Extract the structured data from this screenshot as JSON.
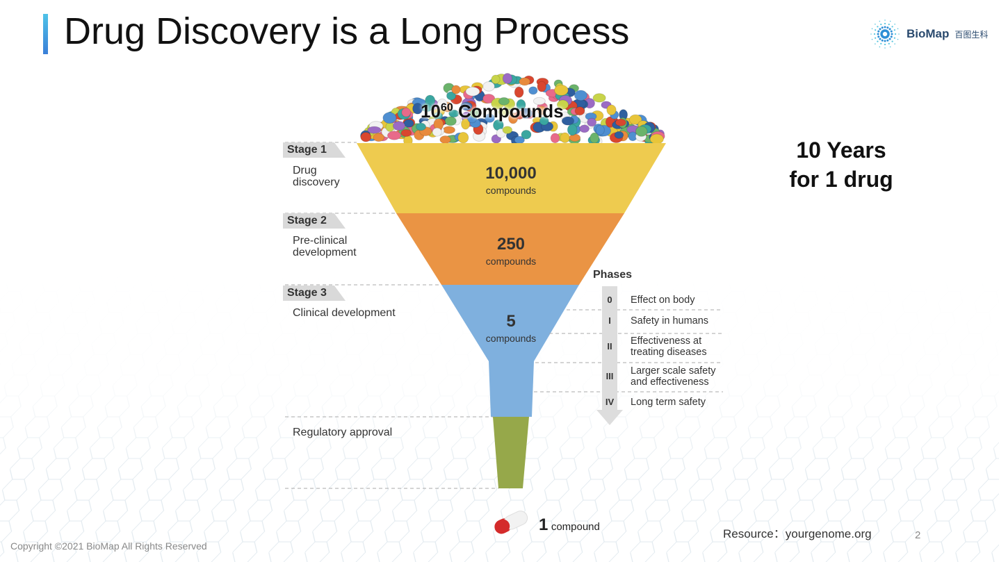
{
  "title": "Drug Discovery is a Long Process",
  "logo": {
    "name": "BioMap",
    "cn": "百图生科"
  },
  "top": {
    "base": "10",
    "exponent": "60",
    "label": "Compounds"
  },
  "stages": [
    {
      "tag": "Stage 1",
      "desc": "Drug\ndiscovery",
      "count": "10,000",
      "unit": "compounds",
      "color": "#eecb4f"
    },
    {
      "tag": "Stage 2",
      "desc": "Pre-clinical\ndevelopment",
      "count": "250",
      "unit": "compounds",
      "color": "#ea9444"
    },
    {
      "tag": "Stage 3",
      "desc": "Clinical development",
      "count": "5",
      "unit": "compounds",
      "color": "#7fb0de"
    }
  ],
  "regulatory": {
    "desc": "Regulatory approval",
    "color": "#96a84a"
  },
  "final": {
    "count": "1",
    "unit": "compound"
  },
  "phases": {
    "heading": "Phases",
    "items": [
      {
        "num": "0",
        "desc": "Effect on body"
      },
      {
        "num": "I",
        "desc": "Safety in humans"
      },
      {
        "num": "II",
        "desc": "Effectiveness at\ntreating diseases"
      },
      {
        "num": "III",
        "desc": "Larger scale safety\nand effectiveness"
      },
      {
        "num": "IV",
        "desc": "Long term safety"
      }
    ]
  },
  "years": {
    "line1": "10 Years",
    "line2": "for 1 drug"
  },
  "resource": "Resource：yourgenome.org",
  "page_number": "2",
  "footer": "Copyright ©2021 BioMap All Rights Reserved"
}
